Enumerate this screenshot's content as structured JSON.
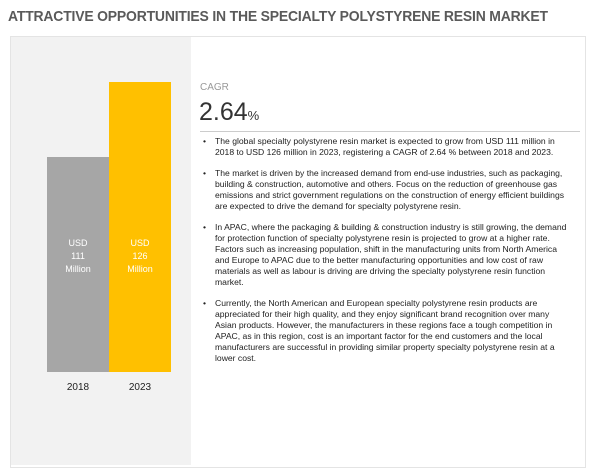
{
  "chart_data": {
    "type": "bar",
    "title": "ATTRACTIVE OPPORTUNITIES IN THE SPECIALTY POLYSTYRENE RESIN MARKET",
    "categories": [
      "2018",
      "2023"
    ],
    "series": [
      {
        "name": null,
        "colors": [
          "#a6a6a6",
          "#ffc000"
        ],
        "values": [
          111,
          126
        ],
        "value_labels": [
          "USD 111 Million",
          "USD 126 Million"
        ]
      }
    ],
    "ylim": [
      68,
      128
    ]
  },
  "cagr": {
    "label": "CAGR",
    "value": "2.64",
    "unit": "%"
  },
  "bullets": [
    "The global specialty polystyrene resin market is expected to grow from USD 111 million in 2018 to USD 126 million in 2023, registering a CAGR of 2.64 % between 2018 and 2023.",
    "The market is driven by the increased demand from end-use industries, such as packaging, building & construction, automotive and others. Focus on the reduction of greenhouse gas emissions and strict government regulations on the construction of energy efficient buildings are expected to drive the demand for specialty polystyrene resin.",
    "In APAC, where the packaging & building & construction industry is still growing, the demand for protection function of specialty polystyrene resin is projected to grow at a higher rate. Factors such as increasing population, shift in the manufacturing units from North America and Europe to APAC due to the better manufacturing opportunities and low cost of raw materials as well as labour is driving are driving the specialty polystyrene resin function market.",
    "Currently, the North American and European specialty polystyrene resin products are appreciated for their high quality, and they enjoy significant brand recognition over many Asian products. However, the manufacturers in these regions face a tough competition in APAC, as in this region, cost is an important factor for the end customers and the local manufacturers are successful in providing similar property specialty polystyrene resin at a lower cost."
  ]
}
